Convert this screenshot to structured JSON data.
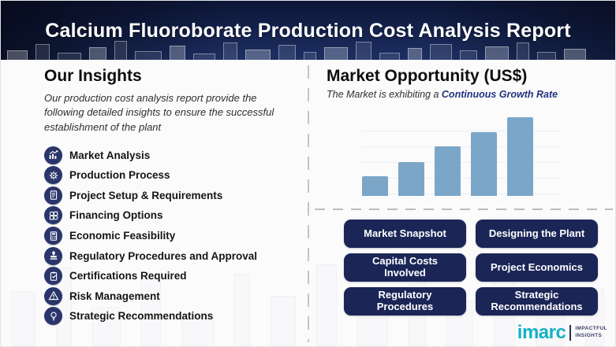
{
  "banner": {
    "title": "Calcium Fluoroborate Production Cost Analysis Report"
  },
  "insights": {
    "heading": "Our Insights",
    "description": "Our production cost analysis report provide the following detailed insights to ensure the successful establishment of the plant",
    "items": [
      {
        "label": "Market Analysis",
        "icon": "market-analysis-icon"
      },
      {
        "label": "Production Process",
        "icon": "production-process-icon"
      },
      {
        "label": "Project Setup & Requirements",
        "icon": "project-setup-icon"
      },
      {
        "label": "Financing Options",
        "icon": "financing-options-icon"
      },
      {
        "label": "Economic Feasibility",
        "icon": "economic-feasibility-icon"
      },
      {
        "label": "Regulatory Procedures and Approval",
        "icon": "regulatory-procedures-icon"
      },
      {
        "label": "Certifications Required",
        "icon": "certifications-icon"
      },
      {
        "label": "Risk Management",
        "icon": "risk-management-icon"
      },
      {
        "label": "Strategic Recommendations",
        "icon": "strategic-recommendations-icon"
      }
    ]
  },
  "market": {
    "heading": "Market Opportunity (US$)",
    "subtitle_prefix": "The Market is exhibiting a ",
    "subtitle_highlight": "Continuous Growth Rate"
  },
  "chart_data": {
    "type": "bar",
    "title": "Market Opportunity (US$)",
    "categories": [
      "",
      "",
      "",
      "",
      ""
    ],
    "values": [
      25,
      43,
      63,
      81,
      100
    ],
    "xlabel": "",
    "ylabel": "",
    "ylim": [
      0,
      100
    ],
    "axis_tick_labels_visible": false,
    "grid": "faint horizontal lines",
    "legend": "none",
    "bar_color": "#7ba6c8",
    "note": "Stylized steadily increasing bars; no numeric axis shown"
  },
  "buttons": [
    "Market Snapshot",
    "Designing the Plant",
    "Capital Costs Involved",
    "Project Economics",
    "Regulatory Procedures",
    "Strategic Recommendations"
  ],
  "logo": {
    "brand": "imarc",
    "tagline_line1": "IMPACTFUL",
    "tagline_line2": "INSIGHTS"
  },
  "colors": {
    "banner_navy": "#15234e",
    "button_navy": "#1b2657",
    "icon_navy": "#2a356b",
    "bar_blue": "#7ba6c8",
    "highlight_navy": "#23337f",
    "accent_teal": "#16b2c3"
  }
}
